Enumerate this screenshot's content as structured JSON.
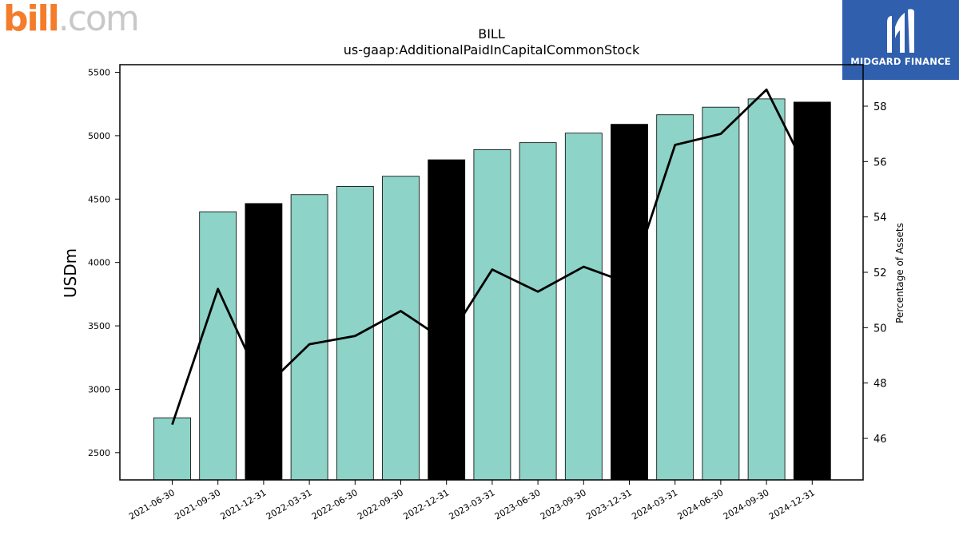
{
  "logos": {
    "left_text": "bill",
    "left_suffix": ".com",
    "right_text": "MIDGARD FINANCE"
  },
  "chart_data": {
    "type": "bar",
    "title": "BILL",
    "subtitle": "us-gaap:AdditionalPaidInCapitalCommonStock",
    "ylabel": "USDm",
    "y2label": "Percentage of Assets",
    "categories": [
      "2021-06-30",
      "2021-09-30",
      "2021-12-31",
      "2022-03-31",
      "2022-06-30",
      "2022-09-30",
      "2022-12-31",
      "2023-03-31",
      "2023-06-30",
      "2023-09-30",
      "2023-12-31",
      "2024-03-31",
      "2024-06-30",
      "2024-09-30",
      "2024-12-31"
    ],
    "ylim": [
      2285,
      5560
    ],
    "y2lim": [
      44.5,
      59.5
    ],
    "yticks": [
      2500,
      3000,
      3500,
      4000,
      4500,
      5000,
      5500
    ],
    "y2ticks": [
      46,
      48,
      50,
      52,
      54,
      56,
      58
    ],
    "bar_colors": {
      "default": "#8dd3c7",
      "highlight": "#000000"
    },
    "line_color": "#000000",
    "grid": false,
    "series": [
      {
        "type": "bar",
        "axis": "left",
        "values": [
          2775,
          4400,
          4465,
          4535,
          4600,
          4680,
          4810,
          4890,
          4945,
          5020,
          5090,
          5165,
          5225,
          5290,
          5265
        ],
        "highlight": [
          false,
          false,
          true,
          false,
          false,
          false,
          true,
          false,
          false,
          false,
          true,
          false,
          false,
          false,
          true
        ]
      },
      {
        "type": "line",
        "axis": "right",
        "values": [
          46.5,
          51.4,
          47.8,
          49.4,
          49.7,
          50.6,
          49.5,
          52.1,
          51.3,
          52.2,
          51.6,
          56.6,
          57.0,
          58.6,
          55.3
        ]
      }
    ]
  }
}
